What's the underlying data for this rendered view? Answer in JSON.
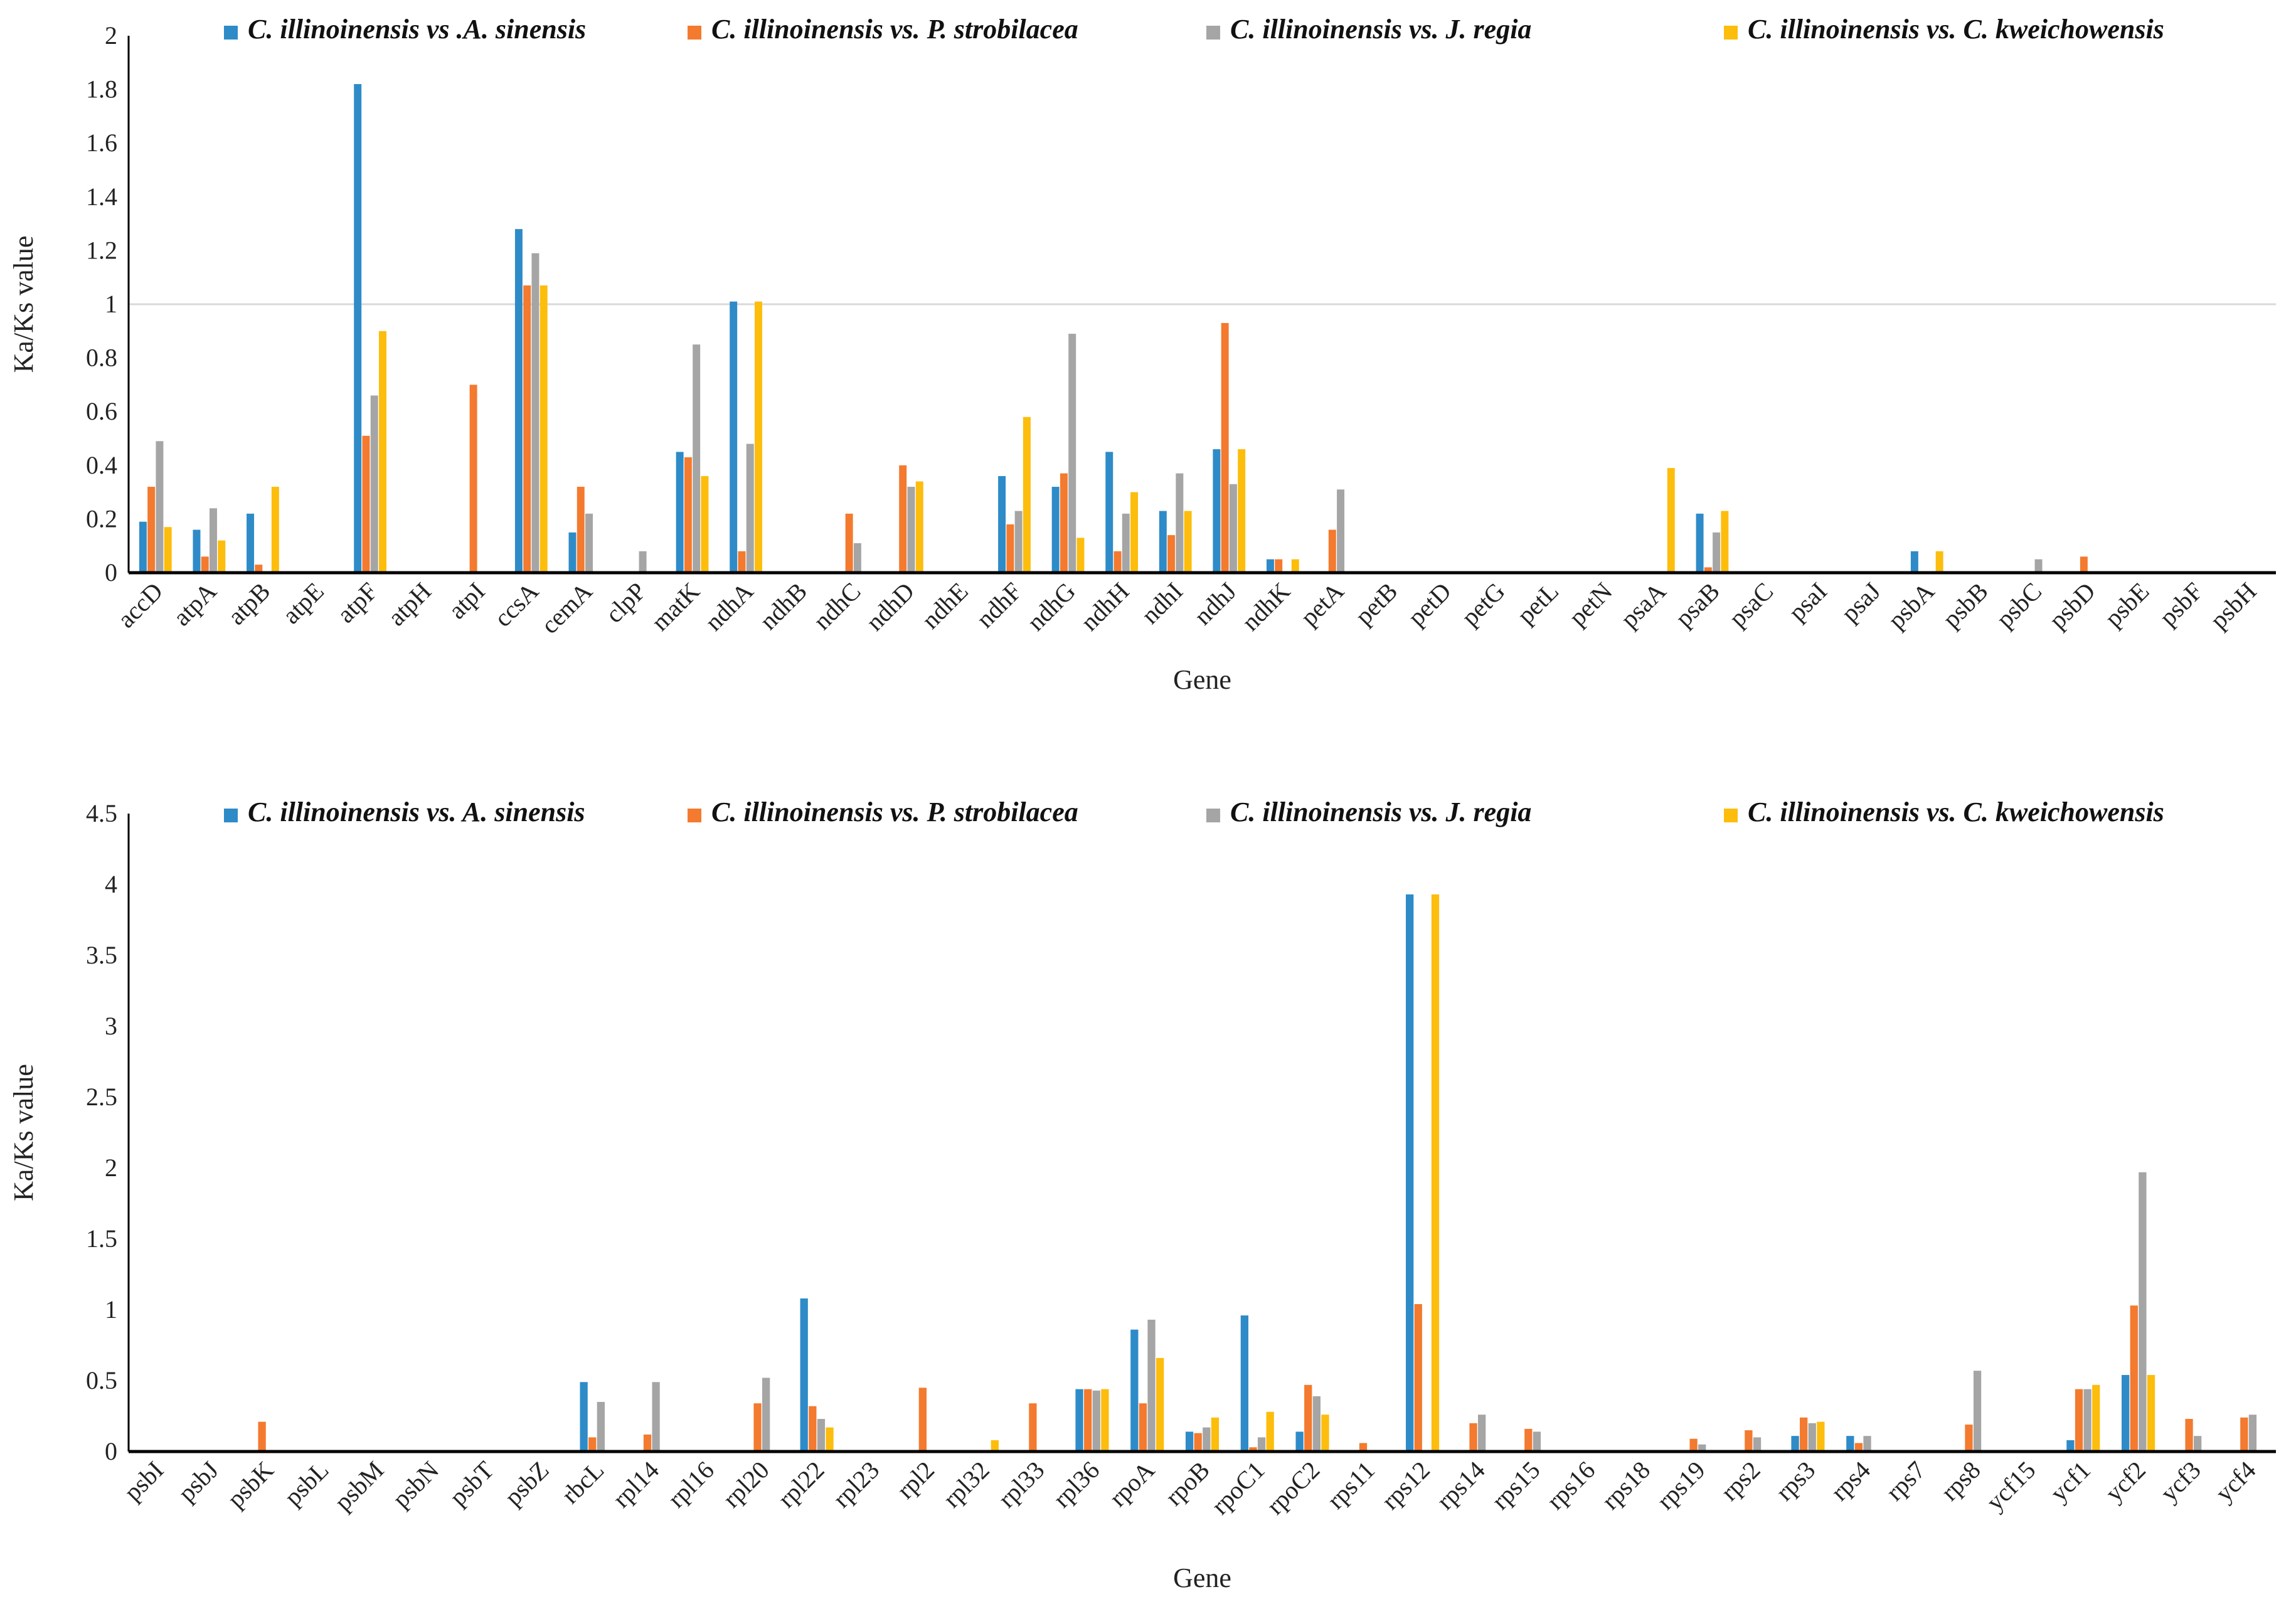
{
  "colors": {
    "c1": "#2e8bc8",
    "c2": "#f37a2e",
    "c3": "#a5a5a5",
    "c4": "#fdbd0d",
    "grid": "#d9d9d9",
    "axis": "#000000"
  },
  "chart_data": [
    {
      "type": "bar",
      "xlabel": "Gene",
      "ylabel": "Ka/Ks value",
      "ylim": [
        0,
        2
      ],
      "yticks": [
        "0",
        "0.2",
        "0.4",
        "0.6",
        "0.8",
        "1",
        "1.2",
        "1.4",
        "1.6",
        "1.8",
        "2"
      ],
      "grid_lines": [
        1
      ],
      "legend_position": "top",
      "categories": [
        "accD",
        "atpA",
        "atpB",
        "atpE",
        "atpF",
        "atpH",
        "atpI",
        "ccsA",
        "cemA",
        "clpP",
        "matK",
        "ndhA",
        "ndhB",
        "ndhC",
        "ndhD",
        "ndhE",
        "ndhF",
        "ndhG",
        "ndhH",
        "ndhI",
        "ndhJ",
        "ndhK",
        "petA",
        "petB",
        "petD",
        "petG",
        "petL",
        "petN",
        "psaA",
        "psaB",
        "psaC",
        "psaI",
        "psaJ",
        "psbA",
        "psbB",
        "psbC",
        "psbD",
        "psbE",
        "psbF",
        "psbH"
      ],
      "series": [
        {
          "name": "C. illinoinensis vs .A. sinensis",
          "values": [
            0.19,
            0.16,
            0.22,
            0,
            1.82,
            0,
            0,
            1.28,
            0.15,
            0,
            0.45,
            1.01,
            0,
            0,
            0,
            0,
            0.36,
            0.32,
            0.45,
            0.23,
            0.46,
            0.05,
            0,
            0,
            0,
            0,
            0,
            0,
            0,
            0.22,
            0,
            0,
            0,
            0.08,
            0,
            0,
            0,
            0,
            0,
            0
          ]
        },
        {
          "name": "C. illinoinensis vs. P. strobilacea",
          "values": [
            0.32,
            0.06,
            0.03,
            0,
            0.51,
            0,
            0.7,
            1.07,
            0.32,
            0,
            0.43,
            0.08,
            0,
            0.22,
            0.4,
            0,
            0.18,
            0.37,
            0.08,
            0.14,
            0.93,
            0.05,
            0.16,
            0,
            0,
            0,
            0,
            0,
            0,
            0.02,
            0,
            0,
            0,
            0,
            0,
            0,
            0.06,
            0,
            0,
            0
          ]
        },
        {
          "name": "C. illinoinensis vs. J. regia",
          "values": [
            0.49,
            0.24,
            0,
            0,
            0.66,
            0,
            0,
            1.19,
            0.22,
            0.08,
            0.85,
            0.48,
            0,
            0.11,
            0.32,
            0,
            0.23,
            0.89,
            0.22,
            0.37,
            0.33,
            0,
            0.31,
            0,
            0,
            0,
            0,
            0,
            0,
            0.15,
            0,
            0,
            0,
            0,
            0,
            0.05,
            0,
            0,
            0,
            0
          ]
        },
        {
          "name": "C. illinoinensis vs. C. kweichowensis",
          "values": [
            0.17,
            0.12,
            0.32,
            0,
            0.9,
            0,
            0,
            1.07,
            0,
            0,
            0.36,
            1.01,
            0,
            0,
            0.34,
            0,
            0.58,
            0.13,
            0.3,
            0.23,
            0.46,
            0.05,
            0,
            0,
            0,
            0,
            0,
            0,
            0.39,
            0.23,
            0,
            0,
            0,
            0.08,
            0,
            0,
            0,
            0,
            0,
            0
          ]
        }
      ]
    },
    {
      "type": "bar",
      "xlabel": "Gene",
      "ylabel": "Ka/Ks value",
      "ylim": [
        0,
        4.5
      ],
      "yticks": [
        "0",
        "0.5",
        "1",
        "1.5",
        "2",
        "2.5",
        "3",
        "3.5",
        "4",
        "4.5"
      ],
      "grid_lines": [],
      "legend_position": "top",
      "categories": [
        "psbI",
        "psbJ",
        "psbK",
        "psbL",
        "psbM",
        "psbN",
        "psbT",
        "psbZ",
        "rbcL",
        "rpl14",
        "rpl16",
        "rpl20",
        "rpl22",
        "rpl23",
        "rpl2",
        "rpl32",
        "rpl33",
        "rpl36",
        "rpoA",
        "rpoB",
        "rpoC1",
        "rpoC2",
        "rps11",
        "rps12",
        "rps14",
        "rps15",
        "rps16",
        "rps18",
        "rps19",
        "rps2",
        "rps3",
        "rps4",
        "rps7",
        "rps8",
        "ycf15",
        "ycf1",
        "ycf2",
        "ycf3",
        "ycf4"
      ],
      "series": [
        {
          "name": "C. illinoinensis vs. A. sinensis",
          "values": [
            0,
            0,
            0,
            0.01,
            0,
            0,
            0,
            0,
            0.49,
            0.01,
            0.01,
            0,
            1.08,
            0,
            0,
            0,
            0,
            0.44,
            0.86,
            0.14,
            0.96,
            0.14,
            0.01,
            3.93,
            0,
            0,
            0,
            0,
            0,
            0,
            0.11,
            0.11,
            0,
            0,
            0,
            0.08,
            0.54,
            0,
            0
          ]
        },
        {
          "name": "C. illinoinensis vs. P. strobilacea",
          "values": [
            0,
            0,
            0.21,
            0.01,
            0,
            0,
            0.01,
            0,
            0.1,
            0.12,
            0.01,
            0.34,
            0.32,
            0,
            0.45,
            0,
            0.34,
            0.44,
            0.34,
            0.13,
            0.03,
            0.47,
            0.06,
            1.04,
            0.2,
            0.16,
            0,
            0,
            0.09,
            0.15,
            0.24,
            0.06,
            0.01,
            0.19,
            0,
            0.44,
            1.03,
            0.23,
            0.24
          ]
        },
        {
          "name": "C. illinoinensis vs. J. regia",
          "values": [
            0,
            0,
            0,
            0.01,
            0,
            0,
            0.01,
            0,
            0.35,
            0.49,
            0.01,
            0.52,
            0.23,
            0,
            0,
            0,
            0,
            0.43,
            0.93,
            0.17,
            0.1,
            0.39,
            0.01,
            0,
            0.26,
            0.14,
            0,
            0,
            0.05,
            0.1,
            0.2,
            0.11,
            0.01,
            0.57,
            0,
            0.44,
            1.97,
            0.11,
            0.26
          ]
        },
        {
          "name": "C. illinoinensis vs. C. kweichowensis",
          "values": [
            0,
            0,
            0,
            0.01,
            0,
            0,
            0.01,
            0,
            0,
            0,
            0.01,
            0,
            0.17,
            0,
            0,
            0.08,
            0,
            0.44,
            0.66,
            0.24,
            0.28,
            0.26,
            0.01,
            3.93,
            0,
            0,
            0,
            0,
            0,
            0,
            0.21,
            0,
            0,
            0,
            0,
            0.47,
            0.54,
            0,
            0
          ]
        }
      ]
    }
  ]
}
